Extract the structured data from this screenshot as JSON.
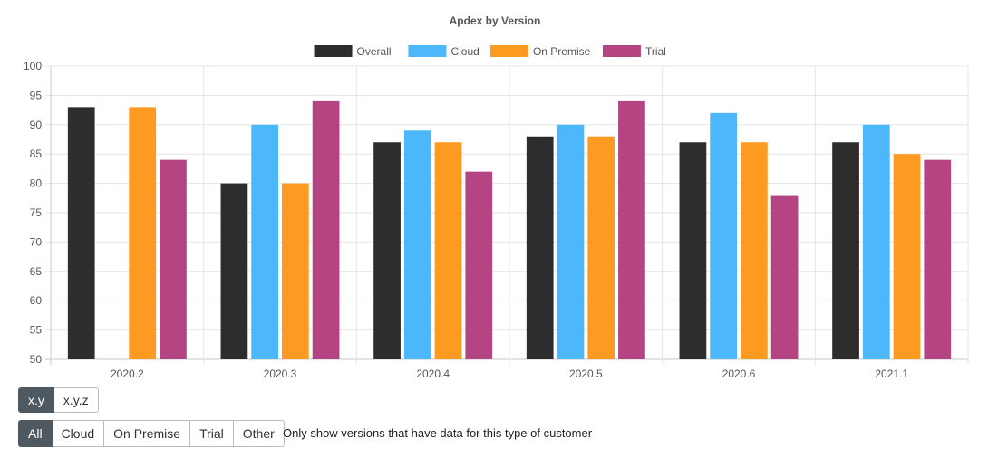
{
  "chart_data": {
    "type": "bar",
    "title": "Apdex by Version",
    "categories": [
      "2020.2",
      "2020.3",
      "2020.4",
      "2020.5",
      "2020.6",
      "2021.1"
    ],
    "series": [
      {
        "name": "Overall",
        "color": "#2d2d2d",
        "values": [
          93,
          80,
          87,
          88,
          87,
          87
        ]
      },
      {
        "name": "Cloud",
        "color": "#4db7fc",
        "values": [
          null,
          90,
          89,
          90,
          92,
          90
        ]
      },
      {
        "name": "On Premise",
        "color": "#fd9a21",
        "values": [
          93,
          80,
          87,
          88,
          87,
          85
        ]
      },
      {
        "name": "Trial",
        "color": "#b44582",
        "values": [
          84,
          94,
          82,
          94,
          78,
          84
        ]
      }
    ],
    "ylim": [
      50,
      100
    ],
    "yticks": [
      50,
      55,
      60,
      65,
      70,
      75,
      80,
      85,
      90,
      95,
      100
    ],
    "xlabel": "",
    "ylabel": "",
    "grid": true,
    "legend": "top-center"
  },
  "controls": {
    "format_buttons": [
      {
        "label": "x.y",
        "active": true
      },
      {
        "label": "x.y.z",
        "active": false
      }
    ],
    "filter_buttons": [
      {
        "label": "All",
        "active": true
      },
      {
        "label": "Cloud",
        "active": false
      },
      {
        "label": "On Premise",
        "active": false
      },
      {
        "label": "Trial",
        "active": false
      },
      {
        "label": "Other",
        "active": false
      }
    ],
    "filter_note": "Only show versions that have data for this type of customer"
  }
}
